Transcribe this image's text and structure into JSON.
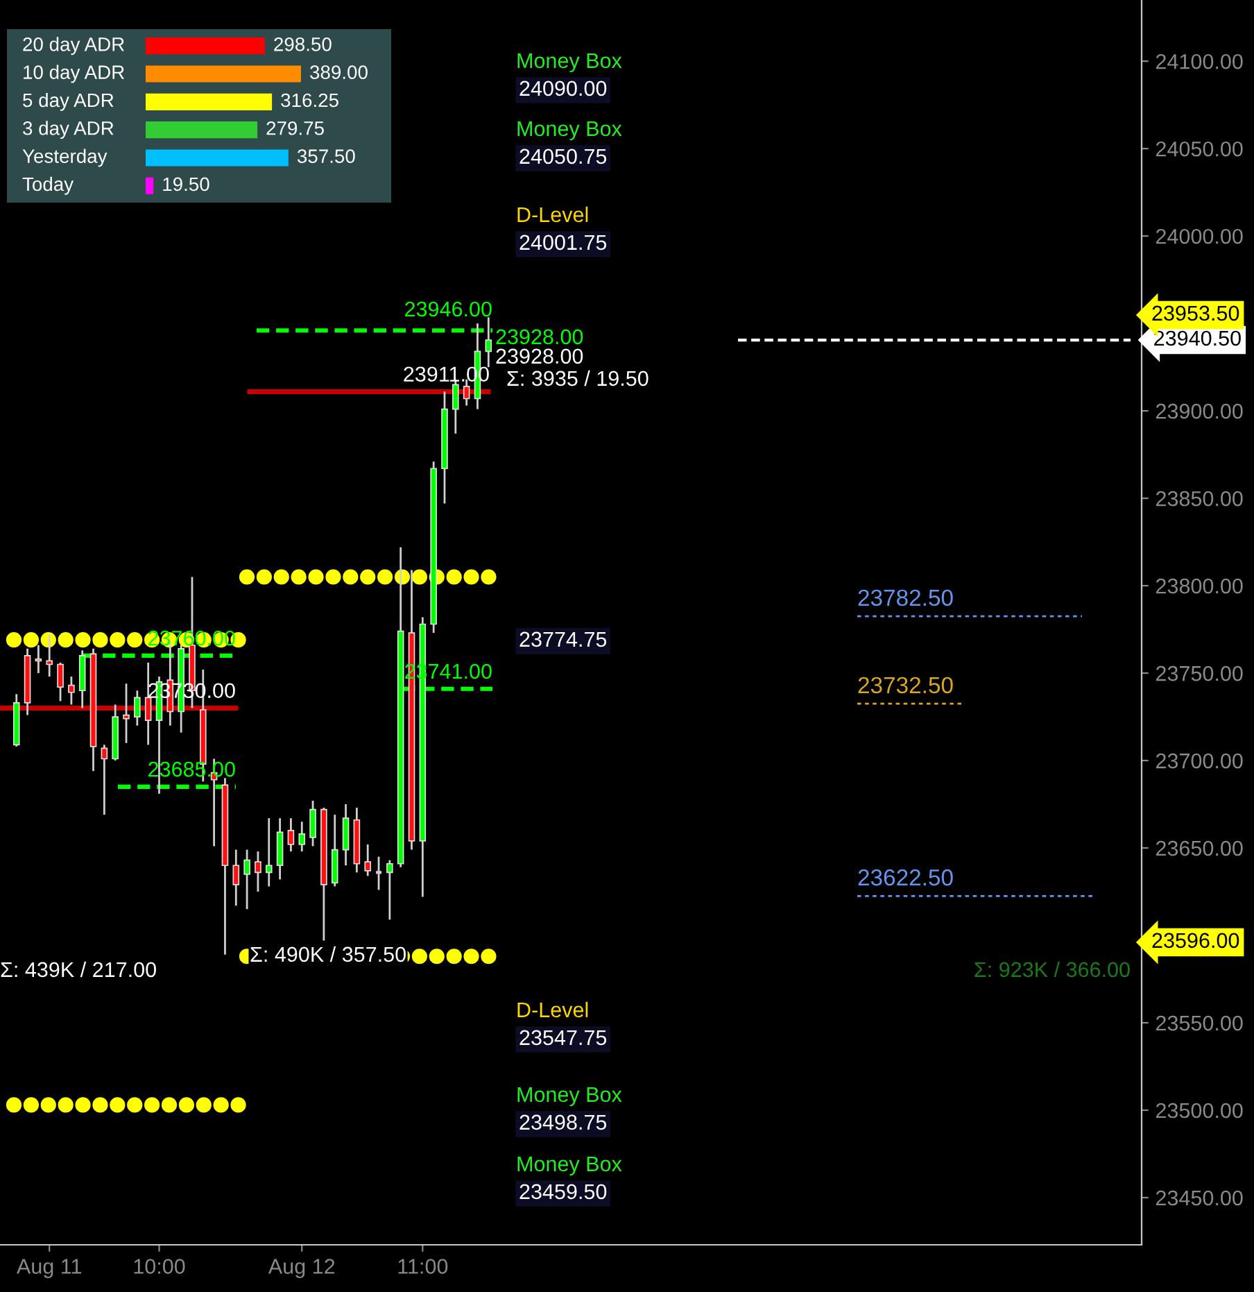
{
  "chart_data": [
    {
      "type": "bar",
      "orientation": "horizontal",
      "tick_labels": false,
      "categories": [
        "20 day ADR",
        "10 day ADR",
        "5 day ADR",
        "3 day ADR",
        "Yesterday",
        "Today"
      ],
      "values": [
        298.5,
        389.0,
        316.25,
        279.75,
        357.5,
        19.5
      ],
      "value_labels": [
        "298.50",
        "389.00",
        "316.25",
        "279.75",
        "357.50",
        "19.50"
      ],
      "colors": [
        "#ff0000",
        "#ff8c00",
        "#ffff00",
        "#32cd32",
        "#00bfff",
        "#ff00ff"
      ]
    },
    {
      "type": "candlestick",
      "categories": [
        null,
        null,
        null,
        "Aug 11",
        null,
        null,
        null,
        null,
        null,
        null,
        null,
        null,
        null,
        "10:00",
        null,
        null,
        null,
        null,
        null,
        null,
        null,
        null,
        null,
        null,
        null,
        null,
        "Aug 12",
        null,
        null,
        null,
        null,
        null,
        null,
        null,
        null,
        null,
        null,
        "11:00",
        null,
        null,
        null,
        null,
        null,
        null,
        null,
        null,
        null,
        null,
        null,
        null,
        null,
        null,
        null,
        null,
        null,
        null,
        null,
        null,
        null,
        null,
        null,
        null,
        null,
        null,
        null,
        null,
        null,
        null,
        null,
        null,
        null,
        null,
        null,
        null,
        null,
        null,
        null,
        null,
        null,
        null,
        null,
        null,
        null,
        null,
        null,
        null,
        null,
        null,
        null,
        null,
        null,
        null,
        null,
        null,
        null,
        null,
        null,
        null,
        null,
        null,
        null,
        null,
        null
      ],
      "ohlc": [
        [
          23709,
          23738,
          23708,
          23733
        ],
        [
          23760,
          23764,
          23726,
          23733
        ],
        [
          23758,
          23766,
          23750,
          23757
        ],
        [
          23757,
          23772,
          23748,
          23755
        ],
        [
          23755,
          23756,
          23734,
          23742
        ],
        [
          23743,
          23748,
          23732,
          23739
        ],
        [
          23740,
          23763,
          23730,
          23760
        ],
        [
          23761,
          23764,
          23694,
          23708
        ],
        [
          23707,
          23709,
          23669,
          23701
        ],
        [
          23701,
          23732,
          23700,
          23725
        ],
        [
          23726,
          23744,
          23710,
          23724
        ],
        [
          23725,
          23740,
          23720,
          23736
        ],
        [
          23736,
          23756,
          23709,
          23723
        ],
        [
          23723,
          23748,
          23681,
          23745
        ],
        [
          23746,
          23768,
          23720,
          23728
        ],
        [
          23728,
          23766,
          23716,
          23764
        ],
        [
          23766,
          23805,
          23730,
          23740
        ],
        [
          23729,
          23752,
          23688,
          23698
        ],
        [
          23693,
          23701,
          23651,
          23689
        ],
        [
          23686,
          23690,
          23589,
          23640
        ],
        [
          23640,
          23649,
          23617,
          23629
        ],
        [
          23635,
          23649,
          23615,
          23643
        ],
        [
          23642,
          23648,
          23625,
          23636
        ],
        [
          23636,
          23667,
          23628,
          23640
        ],
        [
          23640,
          23667,
          23632,
          23659
        ],
        [
          23660,
          23667,
          23648,
          23652
        ],
        [
          23652,
          23665,
          23648,
          23658
        ],
        [
          23656,
          23677,
          23651,
          23672
        ],
        [
          23672,
          23673,
          23597,
          23629
        ],
        [
          23630,
          23669,
          23628,
          23649
        ],
        [
          23649,
          23675,
          23640,
          23667
        ],
        [
          23666,
          23673,
          23636,
          23641
        ],
        [
          23642,
          23652,
          23634,
          23637
        ],
        [
          23636,
          23645,
          23626,
          23636
        ],
        [
          23636,
          23643,
          23609,
          23641
        ],
        [
          23641,
          23822,
          23639,
          23774
        ],
        [
          23773,
          23809,
          23649,
          23654
        ],
        [
          23654,
          23782,
          23622,
          23778
        ],
        [
          23778,
          23871,
          23773,
          23867
        ],
        [
          23867,
          23911,
          23847,
          23901
        ],
        [
          23901,
          23918,
          23887,
          23915
        ],
        [
          23914,
          23918,
          23903,
          23907
        ],
        [
          23907,
          23950,
          23901,
          23934
        ],
        [
          23934,
          23953.5,
          23925,
          23940.5
        ],
        null,
        null,
        null,
        null,
        null,
        null,
        null,
        null,
        null,
        null,
        null,
        null,
        null,
        null,
        null,
        null,
        null,
        null,
        null,
        null,
        null,
        null,
        null,
        null,
        null,
        null,
        null,
        null,
        null,
        null,
        null,
        null,
        null,
        null,
        null,
        null,
        null,
        null,
        null,
        null,
        null,
        null,
        null,
        null,
        null,
        null,
        null,
        null,
        null,
        null,
        null,
        null,
        null,
        null,
        null,
        null,
        null,
        null,
        null
      ],
      "ylim": [
        23423,
        24135
      ],
      "yticks": [
        {
          "value": 23450,
          "label": "23450.00"
        },
        {
          "value": 23500,
          "label": "23500.00"
        },
        {
          "value": 23550,
          "label": "23550.00"
        },
        {
          "value": 23650,
          "label": "23650.00"
        },
        {
          "value": 23700,
          "label": "23700.00"
        },
        {
          "value": 23750,
          "label": "23750.00"
        },
        {
          "value": 23800,
          "label": "23800.00"
        },
        {
          "value": 23850,
          "label": "23850.00"
        },
        {
          "value": 23900,
          "label": "23900.00"
        },
        {
          "value": 24000,
          "label": "24000.00"
        },
        {
          "value": 24050,
          "label": "24050.00"
        },
        {
          "value": 24100,
          "label": "24100.00"
        }
      ],
      "ref_lines": [
        {
          "axis": "y",
          "value": 23946,
          "label": "23946.00",
          "color": "#00ff00",
          "line_style": "dashed"
        },
        {
          "axis": "y",
          "value": 23760,
          "label": "23760.00",
          "color": "#00ff00",
          "line_style": "dashed"
        },
        {
          "axis": "y",
          "value": 23685,
          "label": "23685.00",
          "color": "#00ff00",
          "line_style": "dashed"
        },
        {
          "axis": "y",
          "value": 23741,
          "label": "23741.00",
          "color": "#00ff00",
          "line_style": "dashed"
        },
        {
          "axis": "y",
          "value": 23911,
          "label": "23911.00",
          "color": "#c80000",
          "line_style": "solid"
        },
        {
          "axis": "y",
          "value": 23730,
          "label": "23730.00",
          "color": "#c80000",
          "line_style": "solid"
        },
        {
          "axis": "y",
          "value": 23769,
          "color": "#ffff00",
          "line_style": "dotted"
        },
        {
          "axis": "y",
          "value": 23805,
          "color": "#ffff00",
          "line_style": "dotted"
        },
        {
          "axis": "y",
          "value": 23588,
          "color": "#ffff00",
          "line_style": "dotted"
        },
        {
          "axis": "y",
          "value": 23503,
          "color": "#ffff00",
          "line_style": "dotted"
        },
        {
          "axis": "y",
          "value": 23940.5,
          "label": "23940.50",
          "color": "#ffffff",
          "line_style": "dashed"
        },
        {
          "axis": "y",
          "value": 23782.5,
          "label": "23782.50",
          "color": "#6495ed",
          "line_style": "dotted"
        },
        {
          "axis": "y",
          "value": 23732.5,
          "label": "23732.50",
          "color": "#daa520",
          "line_style": "dotted"
        },
        {
          "axis": "y",
          "value": 23622.5,
          "label": "23622.50",
          "color": "#6495ed",
          "line_style": "dotted"
        }
      ],
      "annotations": [
        "23928.00",
        "23928.00",
        "Σ: 3935 / 19.50",
        "Σ: 439K / 217.00",
        "Σ: 490K / 357.50",
        "Σ: 923K / 366.00",
        "23953.50",
        "23596.00",
        "Money Box",
        "24090.00",
        "Money Box",
        "24050.75",
        "D-Level",
        "24001.75",
        "23774.75",
        "D-Level",
        "23547.75",
        "Money Box",
        "23498.75",
        "Money Box",
        "23459.50"
      ]
    }
  ]
}
